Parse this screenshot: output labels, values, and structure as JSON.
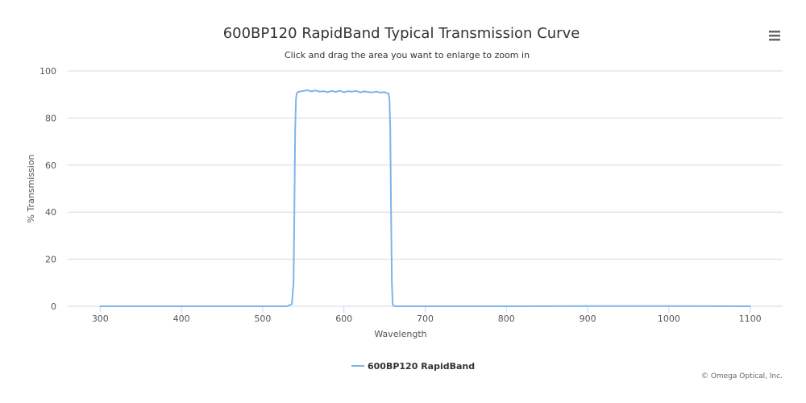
{
  "chart_data": {
    "type": "line",
    "title": "600BP120 RapidBand Typical Transmission Curve",
    "subtitle": "Click and drag the area you want to enlarge to zoom in",
    "xlabel": "Wavelength",
    "ylabel": "% Transmission",
    "xlim": [
      260,
      1140
    ],
    "ylim": [
      0,
      100
    ],
    "x_ticks": [
      300,
      400,
      500,
      600,
      700,
      800,
      900,
      1000,
      1100
    ],
    "y_ticks": [
      0,
      20,
      40,
      60,
      80,
      100
    ],
    "grid": true,
    "legend_position": "bottom-center",
    "series": [
      {
        "name": "600BP120 RapidBand",
        "color": "#7cb5ec",
        "x": [
          300,
          400,
          500,
          530,
          536,
          538,
          539,
          540,
          541,
          542,
          543,
          545,
          550,
          555,
          560,
          565,
          570,
          575,
          580,
          585,
          590,
          595,
          600,
          605,
          610,
          615,
          620,
          625,
          630,
          635,
          640,
          645,
          650,
          655,
          656,
          657,
          658,
          659,
          660,
          661,
          662,
          665,
          670,
          700,
          800,
          900,
          1000,
          1100
        ],
        "y": [
          0,
          0,
          0,
          0,
          1,
          10,
          40,
          75,
          88,
          90.5,
          91,
          91.2,
          91.5,
          91.8,
          91.3,
          91.7,
          91.2,
          91.4,
          91,
          91.5,
          91.1,
          91.6,
          90.9,
          91.4,
          91.2,
          91.5,
          90.9,
          91.3,
          91,
          90.9,
          91.2,
          90.8,
          91,
          90.3,
          88,
          75,
          40,
          10,
          1,
          0.3,
          0.1,
          0,
          0,
          0,
          0,
          0.1,
          0.1,
          0
        ]
      }
    ]
  },
  "credits": "© Omega Optical, Inc.",
  "menu_icon": "hamburger-menu-icon"
}
